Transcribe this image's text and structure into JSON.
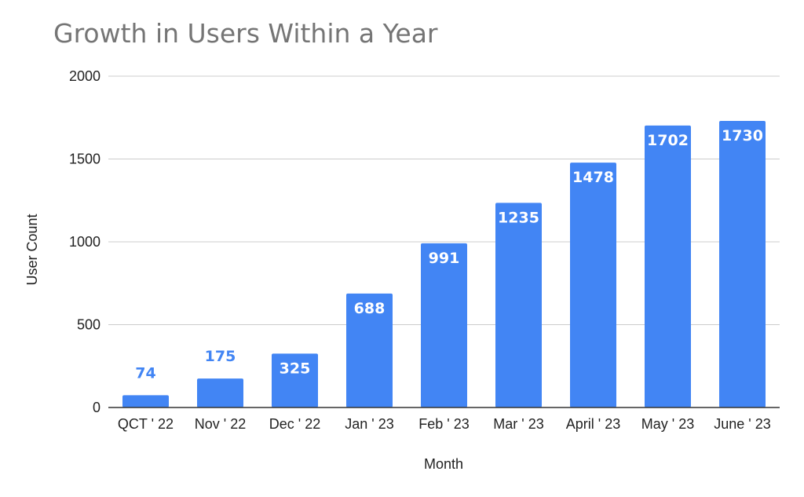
{
  "chart_data": {
    "type": "bar",
    "title": "Growth in Users Within a Year",
    "xlabel": "Month",
    "ylabel": "User Count",
    "categories": [
      "QCT ' 22",
      "Nov ' 22",
      "Dec ' 22",
      "Jan ' 23",
      "Feb ' 23",
      "Mar ' 23",
      "April ' 23",
      "May ' 23",
      "June ' 23"
    ],
    "values": [
      74,
      175,
      325,
      688,
      991,
      1235,
      1478,
      1702,
      1730
    ],
    "ylim": [
      0,
      2000
    ],
    "yticks": [
      0,
      500,
      1000,
      1500,
      2000
    ],
    "grid": true,
    "legend": "none",
    "colors": {
      "bar": "#4285f4",
      "label_inside": "#ffffff",
      "label_outside": "#4285f4"
    }
  }
}
